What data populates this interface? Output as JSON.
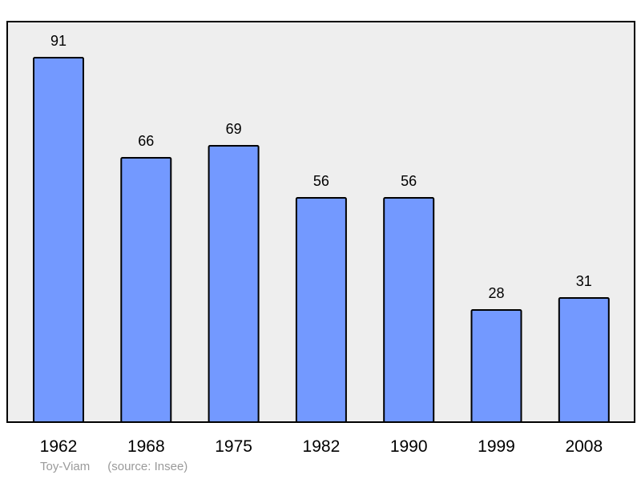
{
  "chart_data": {
    "type": "bar",
    "categories": [
      "1962",
      "1968",
      "1975",
      "1982",
      "1990",
      "1999",
      "2008"
    ],
    "values": [
      91,
      66,
      69,
      56,
      56,
      28,
      31
    ],
    "title": "",
    "xlabel": "",
    "ylabel": "",
    "ylim": [
      0,
      100
    ],
    "grid": false,
    "bar_color": "#7399ff",
    "background_color": "#eeeeee"
  },
  "footer": {
    "place": "Toy-Viam",
    "source": "(source: Insee)"
  }
}
